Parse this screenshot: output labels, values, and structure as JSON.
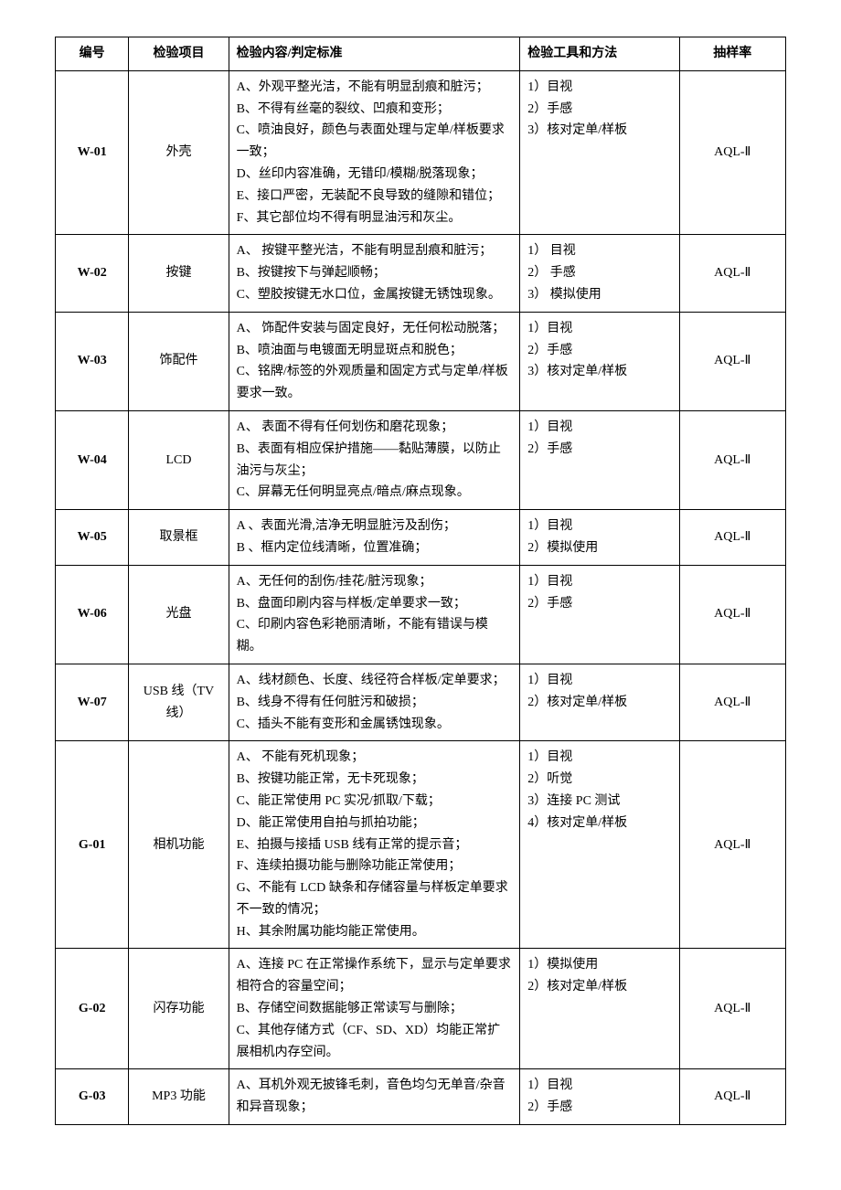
{
  "headers": {
    "id": "编号",
    "item": "检验项目",
    "content": "检验内容/判定标准",
    "method": "检验工具和方法",
    "rate": "抽样率"
  },
  "rows": [
    {
      "id": "W-01",
      "item": "外壳",
      "content": [
        "A、外观平整光洁，不能有明显刮痕和脏污；",
        "B、不得有丝毫的裂纹、凹痕和变形；",
        "C、喷油良好，颜色与表面处理与定单/样板要求一致；",
        "D、丝印内容准确，无错印/模糊/脱落现象；",
        "E、接口严密，无装配不良导致的缝隙和错位；",
        "F、其它部位均不得有明显油污和灰尘。"
      ],
      "method": [
        "1）目视",
        "2）手感",
        "3）核对定单/样板"
      ],
      "rate": "AQL-Ⅱ"
    },
    {
      "id": "W-02",
      "item": "按键",
      "content": [
        "A、 按键平整光洁，不能有明显刮痕和脏污；",
        "B、按键按下与弹起顺畅；",
        "C、塑胶按键无水口位，金属按键无锈蚀现象。"
      ],
      "method": [
        "1） 目视",
        "2） 手感",
        "3） 模拟使用"
      ],
      "rate": "AQL-Ⅱ"
    },
    {
      "id": "W-03",
      "item": "饰配件",
      "content": [
        "A、 饰配件安装与固定良好，无任何松动脱落；",
        "B、喷油面与电镀面无明显斑点和脱色；",
        "C、铭牌/标签的外观质量和固定方式与定单/样板要求一致。"
      ],
      "method": [
        "1）目视",
        "2）手感",
        "3）核对定单/样板"
      ],
      "rate": "AQL-Ⅱ"
    },
    {
      "id": "W-04",
      "item": "LCD",
      "content": [
        "A、 表面不得有任何划伤和磨花现象；",
        "B、表面有相应保护措施——黏贴薄膜，以防止油污与灰尘；",
        "C、屏幕无任何明显亮点/暗点/麻点现象。"
      ],
      "method": [
        "1）目视",
        "2）手感"
      ],
      "rate": "AQL-Ⅱ"
    },
    {
      "id": "W-05",
      "item": "取景框",
      "content": [
        "A 、表面光滑,洁净无明显脏污及刮伤；",
        "B 、框内定位线清晰，位置准确；"
      ],
      "method": [
        "1）目视",
        "2）模拟使用"
      ],
      "rate": "AQL-Ⅱ"
    },
    {
      "id": "W-06",
      "item": "光盘",
      "content": [
        "A、无任何的刮伤/挂花/脏污现象；",
        "B、盘面印刷内容与样板/定单要求一致；",
        "C、印刷内容色彩艳丽清晰，不能有错误与模糊。"
      ],
      "method": [
        "1）目视",
        "2）手感"
      ],
      "rate": "AQL-Ⅱ"
    },
    {
      "id": "W-07",
      "item": "USB 线（TV 线）",
      "content": [
        "A、线材颜色、长度、线径符合样板/定单要求；",
        "B、线身不得有任何脏污和破损；",
        "C、插头不能有变形和金属锈蚀现象。"
      ],
      "method": [
        "1）目视",
        "2）核对定单/样板"
      ],
      "rate": "AQL-Ⅱ"
    },
    {
      "id": "G-01",
      "item": "相机功能",
      "content": [
        "A、 不能有死机现象；",
        "B、按键功能正常，无卡死现象；",
        "C、能正常使用 PC 实况/抓取/下载；",
        "D、能正常使用自拍与抓拍功能；",
        "E、拍摄与接插 USB 线有正常的提示音；",
        "F、连续拍摄功能与删除功能正常使用；",
        "G、不能有 LCD 缺条和存储容量与样板定单要求不一致的情况；",
        "H、其余附属功能均能正常使用。"
      ],
      "method": [
        "1）目视",
        "2）听觉",
        "3）连接 PC 测试",
        "4）核对定单/样板"
      ],
      "rate": "AQL-Ⅱ"
    },
    {
      "id": "G-02",
      "item": "闪存功能",
      "content": [
        "A、连接 PC 在正常操作系统下，显示与定单要求相符合的容量空间；",
        "B、存储空间数据能够正常读写与删除；",
        "C、其他存储方式（CF、SD、XD）均能正常扩展相机内存空间。"
      ],
      "method": [
        "1）模拟使用",
        "2）核对定单/样板"
      ],
      "rate": "AQL-Ⅱ"
    },
    {
      "id": "G-03",
      "item": "MP3 功能",
      "content": [
        "A、耳机外观无披锋毛刺，音色均匀无单音/杂音和异音现象；"
      ],
      "method": [
        "1）目视",
        "2）手感"
      ],
      "rate": "AQL-Ⅱ"
    }
  ]
}
